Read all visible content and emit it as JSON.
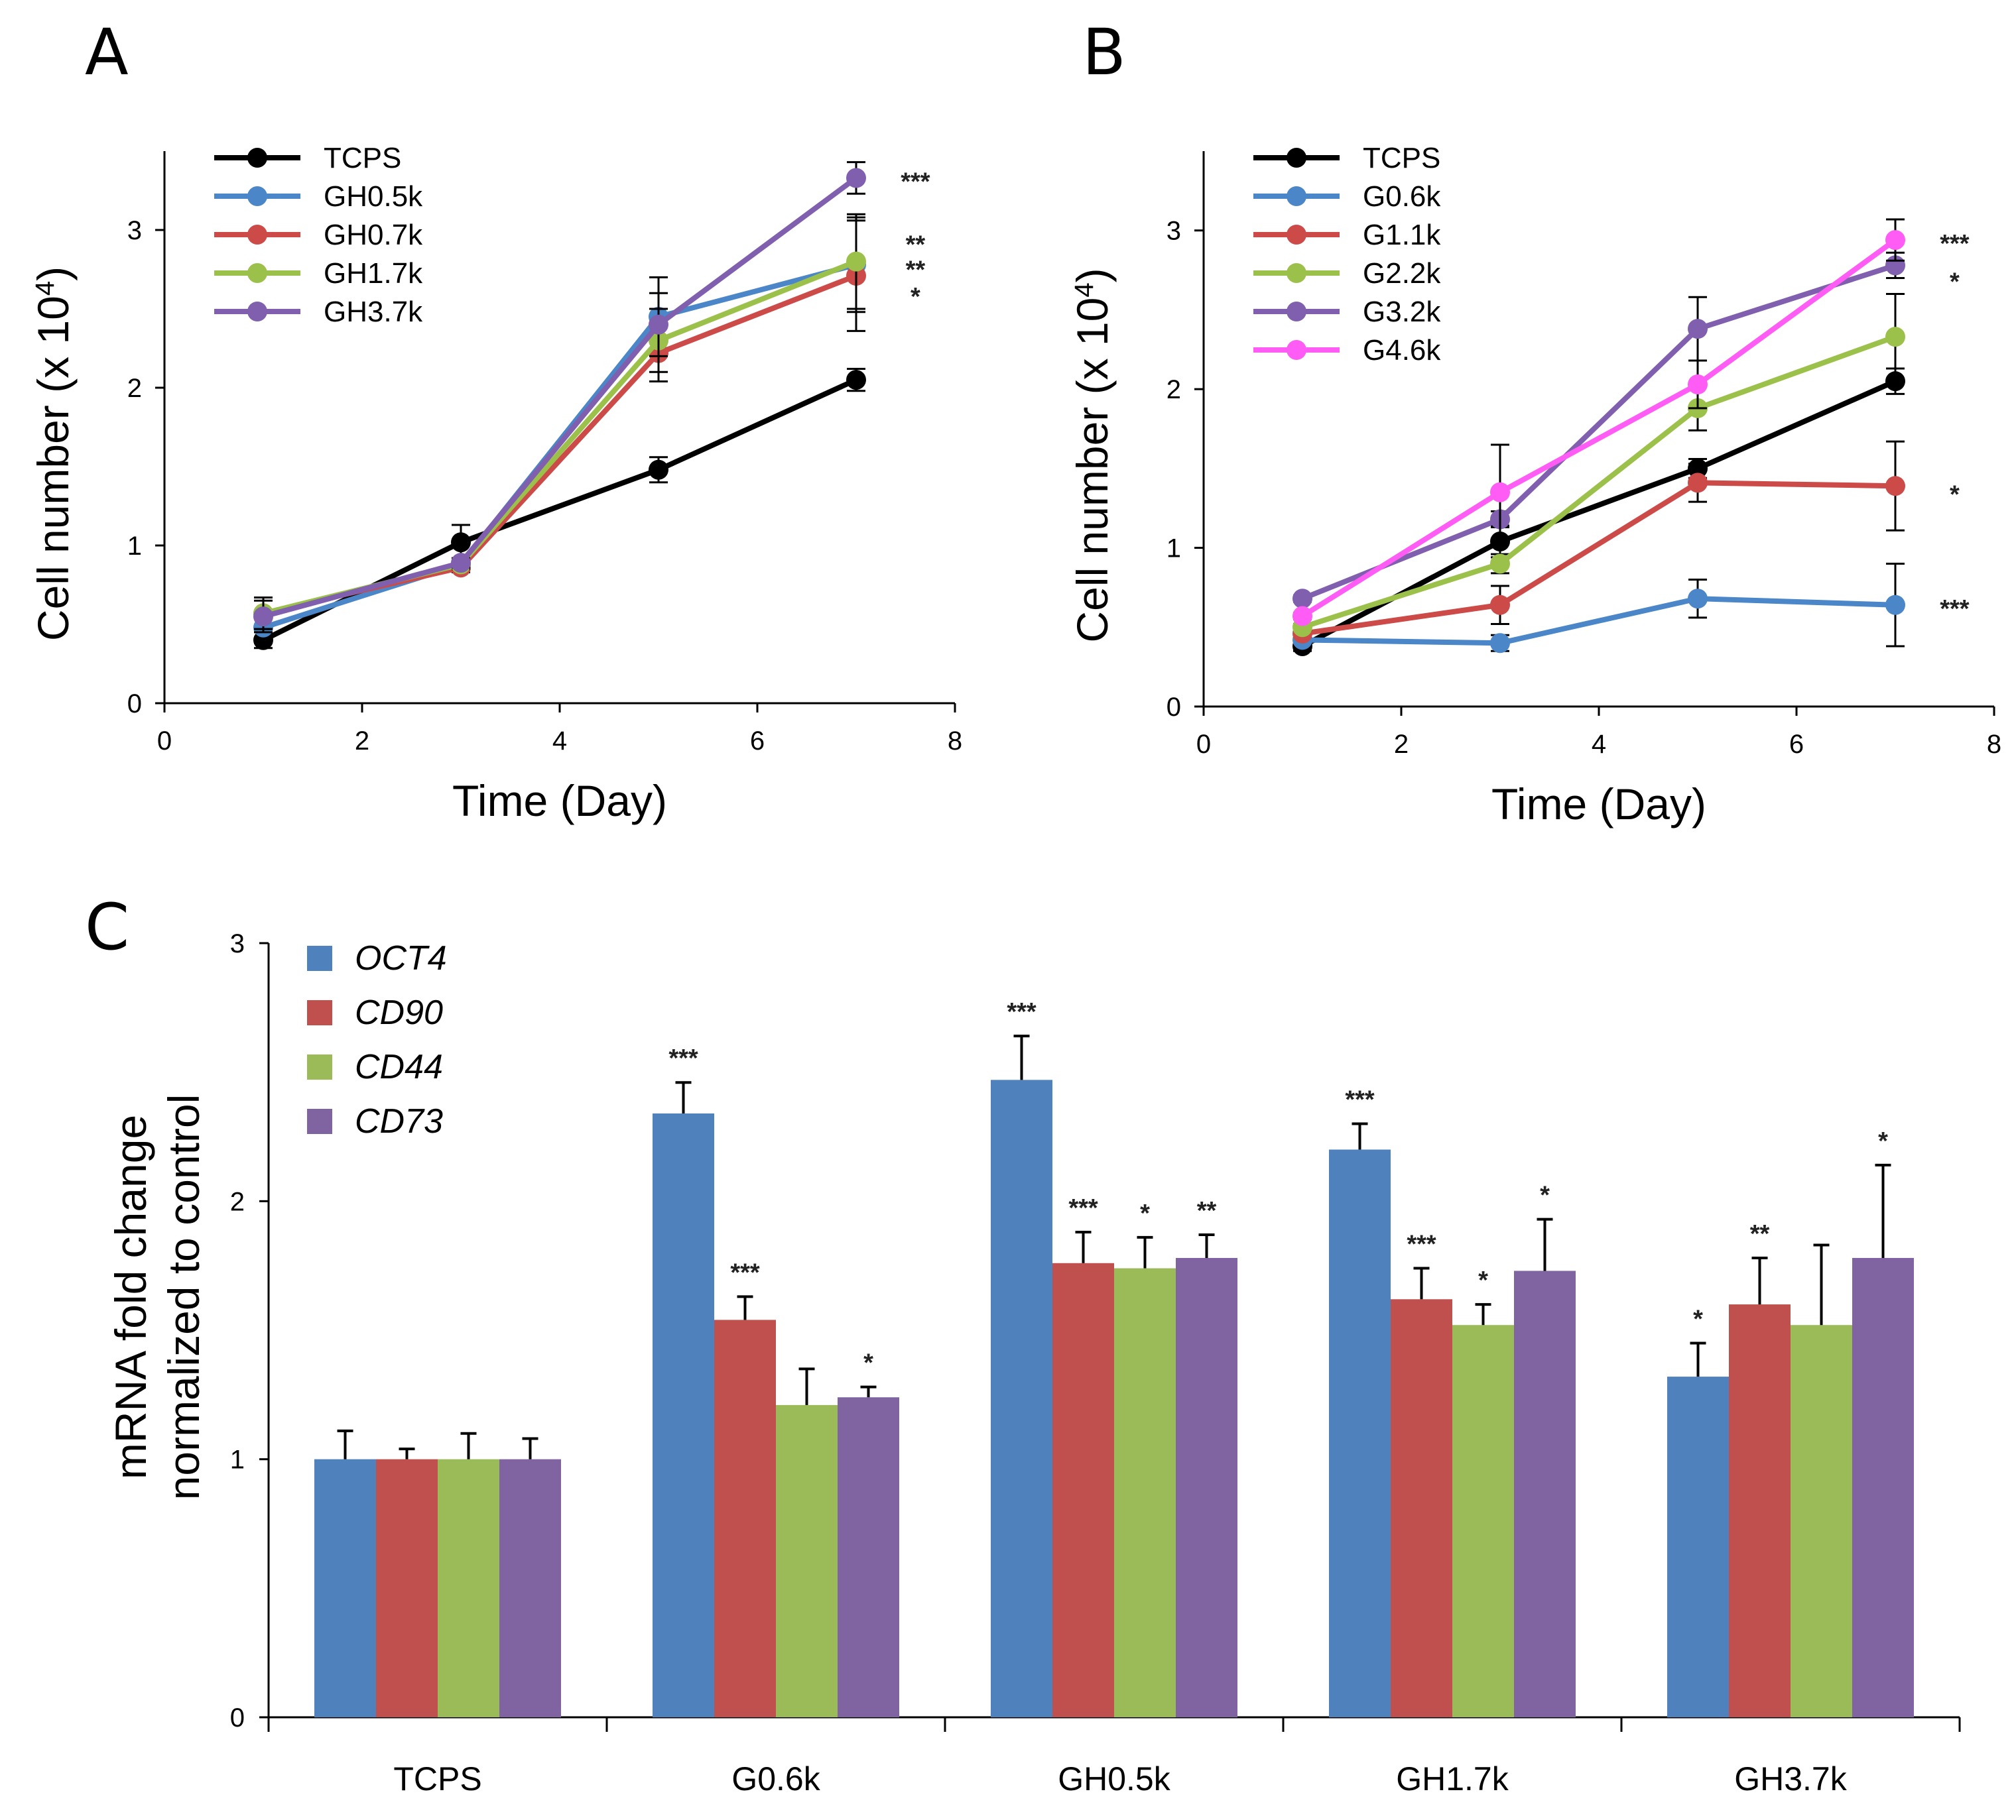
{
  "chart_data": [
    {
      "panel": "A",
      "type": "line",
      "title": "",
      "xlabel": "Time (Day)",
      "ylabel": "Cell number (x 10",
      "ylabel_sup": "4",
      "ylabel_close": ")",
      "xlim": [
        0,
        8
      ],
      "ylim": [
        0,
        3.5
      ],
      "xticks": [
        0,
        2,
        4,
        6,
        8
      ],
      "yticks": [
        0,
        1,
        2,
        3
      ],
      "grid": false,
      "legend_position": "top-left",
      "x": [
        1,
        3,
        5,
        7
      ],
      "series": [
        {
          "name": "TCPS",
          "color": "#000000",
          "values": [
            0.4,
            1.02,
            1.48,
            2.05
          ],
          "errors": [
            0.05,
            0.11,
            0.08,
            0.07
          ]
        },
        {
          "name": "GH0.5k",
          "color": "#4a86c8",
          "values": [
            0.48,
            0.88,
            2.45,
            2.78
          ],
          "errors": [
            0.1,
            0.03,
            0.25,
            0.3
          ]
        },
        {
          "name": "GH0.7k",
          "color": "#cc4a48",
          "values": [
            0.57,
            0.86,
            2.22,
            2.71
          ],
          "errors": [
            0.1,
            0.03,
            0.18,
            0.35
          ]
        },
        {
          "name": "GH1.7k",
          "color": "#9bc14a",
          "values": [
            0.57,
            0.88,
            2.3,
            2.8
          ],
          "errors": [
            0.1,
            0.03,
            0.2,
            0.3
          ]
        },
        {
          "name": "GH3.7k",
          "color": "#7f5fae",
          "values": [
            0.55,
            0.89,
            2.4,
            3.33
          ],
          "errors": [
            0.1,
            0.03,
            0.2,
            0.1
          ]
        }
      ],
      "annotations": [
        {
          "text": "***",
          "x": 7.6,
          "y": 3.33
        },
        {
          "text": "**",
          "x": 7.6,
          "y": 2.93
        },
        {
          "text": "**",
          "x": 7.6,
          "y": 2.77
        },
        {
          "text": "*",
          "x": 7.6,
          "y": 2.6
        }
      ]
    },
    {
      "panel": "B",
      "type": "line",
      "title": "",
      "xlabel": "Time (Day)",
      "ylabel": "Cell number (x 10",
      "ylabel_sup": "4",
      "ylabel_close": ")",
      "xlim": [
        0,
        8
      ],
      "ylim": [
        0,
        3.5
      ],
      "xticks": [
        0,
        2,
        4,
        6,
        8
      ],
      "yticks": [
        0,
        1,
        2,
        3
      ],
      "grid": false,
      "legend_position": "top-left",
      "x": [
        1,
        3,
        5,
        7
      ],
      "series": [
        {
          "name": "TCPS",
          "color": "#000000",
          "values": [
            0.38,
            1.04,
            1.5,
            2.05
          ],
          "errors": [
            0.03,
            0.1,
            0.06,
            0.08
          ]
        },
        {
          "name": "G0.6k",
          "color": "#4a86c8",
          "values": [
            0.42,
            0.4,
            0.68,
            0.64
          ],
          "errors": [
            0.02,
            0.05,
            0.12,
            0.26
          ]
        },
        {
          "name": "G1.1k",
          "color": "#cc4a48",
          "values": [
            0.46,
            0.64,
            1.41,
            1.39
          ],
          "errors": [
            0.02,
            0.12,
            0.12,
            0.28
          ]
        },
        {
          "name": "G2.2k",
          "color": "#9bc14a",
          "values": [
            0.5,
            0.9,
            1.88,
            2.33
          ],
          "errors": [
            0.02,
            0.06,
            0.14,
            0.27
          ]
        },
        {
          "name": "G3.2k",
          "color": "#7f5fae",
          "values": [
            0.68,
            1.18,
            2.38,
            2.78
          ],
          "errors": [
            0.02,
            0.05,
            0.2,
            0.08
          ]
        },
        {
          "name": "G4.6k",
          "color": "#ff5cf6",
          "values": [
            0.57,
            1.35,
            2.03,
            2.94
          ],
          "errors": [
            0.02,
            0.3,
            0.15,
            0.13
          ]
        }
      ],
      "annotations": [
        {
          "text": "***",
          "x": 7.6,
          "y": 2.94
        },
        {
          "text": "*",
          "x": 7.6,
          "y": 2.7
        },
        {
          "text": "*",
          "x": 7.6,
          "y": 1.36
        },
        {
          "text": "***",
          "x": 7.6,
          "y": 0.64
        }
      ]
    },
    {
      "panel": "C",
      "type": "bar",
      "title": "",
      "xlabel": "",
      "ylabel_line1": "mRNA fold change",
      "ylabel_line2": "normalized to control",
      "ylim": [
        0,
        3
      ],
      "yticks": [
        0,
        1,
        2,
        3
      ],
      "grid": false,
      "legend_position": "top-left",
      "categories": [
        "TCPS",
        "G0.6k",
        "GH0.5k",
        "GH1.7k",
        "GH3.7k"
      ],
      "series": [
        {
          "name": "OCT4",
          "color": "#4f81bd",
          "values": [
            1.0,
            2.34,
            2.47,
            2.2,
            1.32
          ],
          "errors": [
            0.11,
            0.12,
            0.17,
            0.1,
            0.13
          ],
          "sig": [
            "",
            "***",
            "***",
            "***",
            "*"
          ]
        },
        {
          "name": "CD90",
          "color": "#c0504d",
          "values": [
            1.0,
            1.54,
            1.76,
            1.62,
            1.6
          ],
          "errors": [
            0.04,
            0.09,
            0.12,
            0.12,
            0.18
          ],
          "sig": [
            "",
            "***",
            "***",
            "***",
            "**"
          ]
        },
        {
          "name": "CD44",
          "color": "#9bbb59",
          "values": [
            1.0,
            1.21,
            1.74,
            1.52,
            1.52
          ],
          "errors": [
            0.1,
            0.14,
            0.12,
            0.08,
            0.31
          ],
          "sig": [
            "",
            "",
            "*",
            "*",
            ""
          ]
        },
        {
          "name": "CD73",
          "color": "#8064a2",
          "values": [
            1.0,
            1.24,
            1.78,
            1.73,
            1.78
          ],
          "errors": [
            0.08,
            0.04,
            0.09,
            0.2,
            0.36
          ],
          "sig": [
            "",
            "*",
            "**",
            "*",
            "*"
          ]
        }
      ]
    }
  ]
}
